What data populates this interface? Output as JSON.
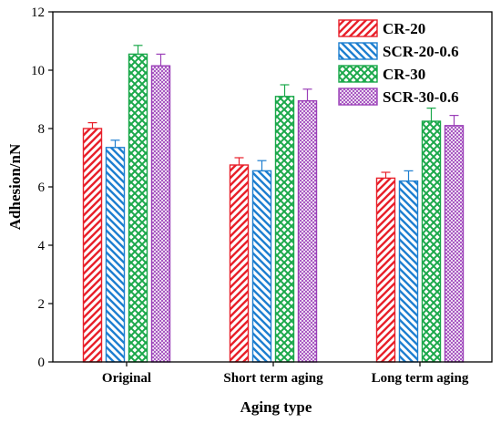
{
  "chart_data": {
    "type": "bar",
    "xlabel": "Aging type",
    "ylabel": "Adhesion/nN",
    "ylim": [
      0,
      12
    ],
    "yticks": [
      0,
      2,
      4,
      6,
      8,
      10,
      12
    ],
    "grid": false,
    "legend_position": "top-right",
    "categories": [
      "Original",
      "Short term aging",
      "Long term aging"
    ],
    "series": [
      {
        "name": "CR-20",
        "color": "#e8202a",
        "pattern": "diagonal-up",
        "values": [
          8.0,
          6.75,
          6.3
        ],
        "errors": [
          0.2,
          0.25,
          0.2
        ]
      },
      {
        "name": "SCR-20-0.6",
        "color": "#1e7fd0",
        "pattern": "diagonal-down",
        "values": [
          7.35,
          6.55,
          6.2
        ],
        "errors": [
          0.25,
          0.35,
          0.35
        ]
      },
      {
        "name": "CR-30",
        "color": "#1aa84a",
        "pattern": "crosshatch",
        "values": [
          10.55,
          9.1,
          8.25
        ],
        "errors": [
          0.3,
          0.4,
          0.45
        ]
      },
      {
        "name": "SCR-30-0.6",
        "color": "#9b3fb8",
        "pattern": "fine-check",
        "values": [
          10.15,
          8.95,
          8.1
        ],
        "errors": [
          0.4,
          0.4,
          0.35
        ]
      }
    ]
  }
}
